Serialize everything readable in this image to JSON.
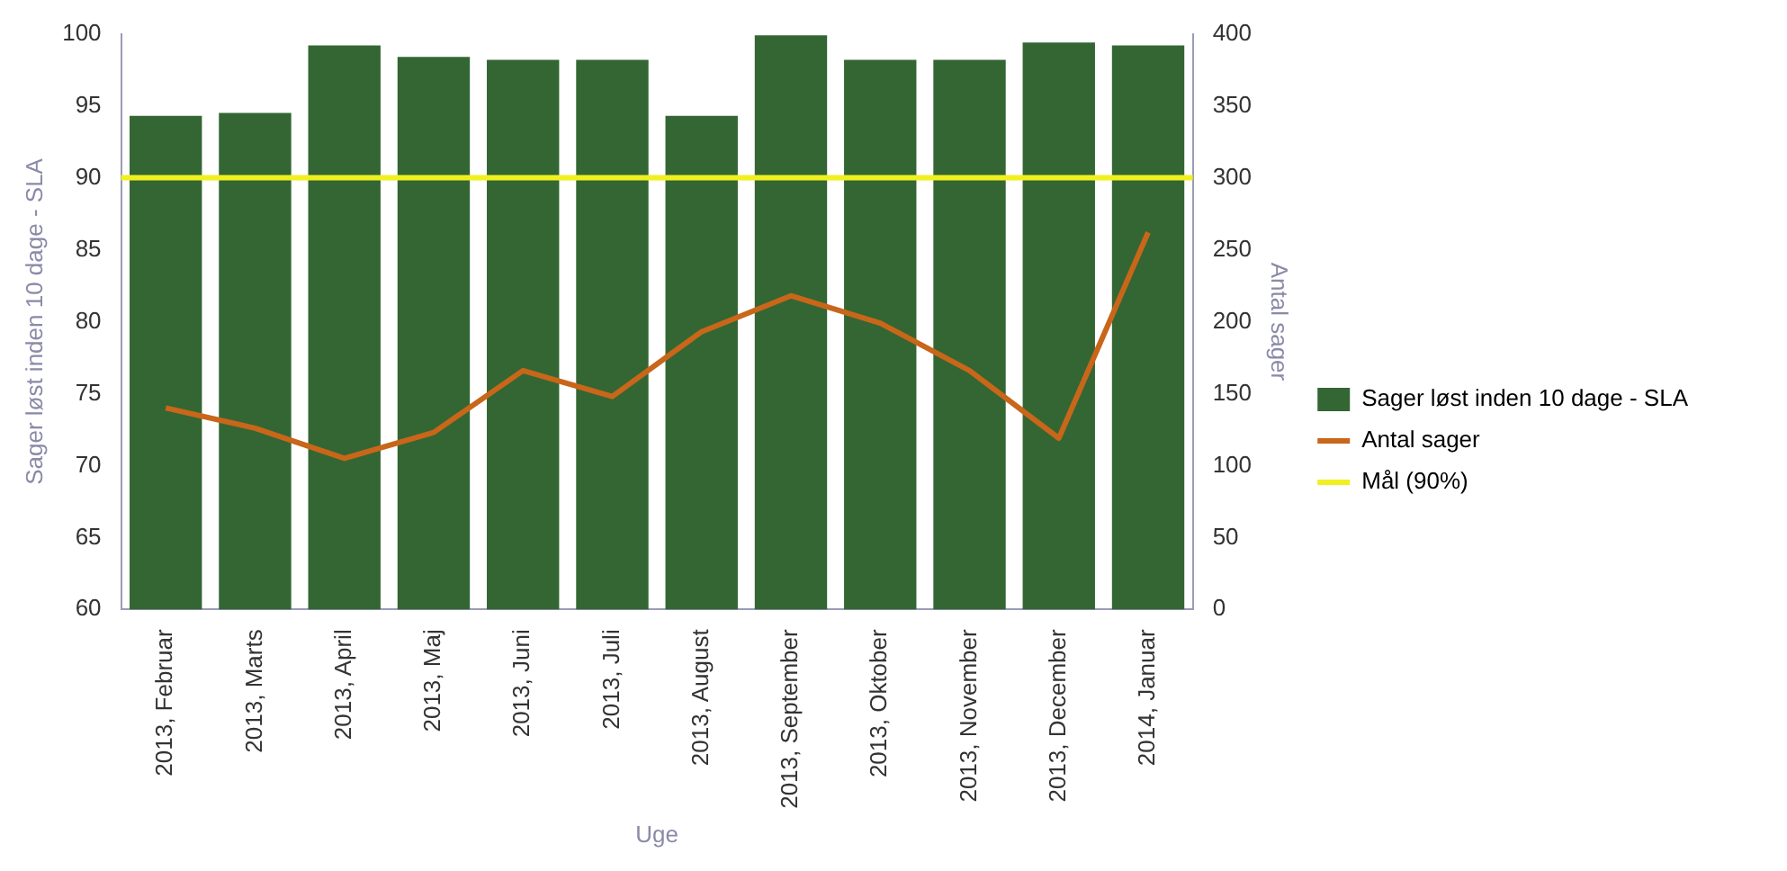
{
  "chart_data": {
    "type": "bar",
    "xlabel": "Uge",
    "ylabel": "Sager løst inden 10 dage - SLA",
    "y2label": "Antal sager",
    "categories": [
      "2013, Februar",
      "2013, Marts",
      "2013, April",
      "2013, Maj",
      "2013, Juni",
      "2013, Juli",
      "2013, August",
      "2013, September",
      "2013, Oktober",
      "2013, November",
      "2013, December",
      "2014, Januar"
    ],
    "series": [
      {
        "name": "Sager løst inden 10 dage - SLA",
        "color": "#336633",
        "values": [
          94.3,
          94.5,
          99.2,
          98.4,
          98.2,
          98.2,
          94.3,
          99.9,
          98.2,
          98.2,
          99.4,
          99.2
        ]
      },
      {
        "name": "Antal sager",
        "type": "line",
        "axis": "y2",
        "color": "#c8661a",
        "values": [
          140,
          126,
          105,
          123,
          166,
          148,
          193,
          218,
          199,
          166,
          119,
          262
        ]
      }
    ],
    "ylim": [
      60,
      100
    ],
    "yticks": [
      60,
      65,
      70,
      75,
      80,
      85,
      90,
      95,
      100
    ],
    "y2lim": [
      0,
      400
    ],
    "y2ticks": [
      0,
      50,
      100,
      150,
      200,
      250,
      300,
      350,
      400
    ],
    "ref_lines": [
      {
        "axis": "y",
        "value": 90,
        "label": "Mål (90%)",
        "color": "#f0f020"
      }
    ],
    "legend": "right",
    "grid": false,
    "marker": "none",
    "line_style": "solid"
  }
}
